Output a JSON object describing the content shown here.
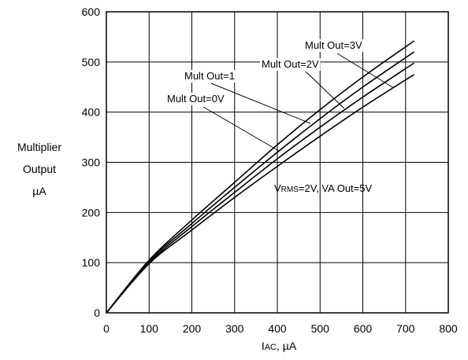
{
  "chart_data": {
    "type": "line",
    "xlabel_main": "I",
    "xlabel_sub": "AC",
    "xlabel_unit": ", µA",
    "ylabel_lines": [
      "Multiplier",
      "Output",
      "µA"
    ],
    "xlim": [
      0,
      800
    ],
    "ylim": [
      0,
      600
    ],
    "x_ticks": [
      "0",
      "100",
      "200",
      "300",
      "400",
      "500",
      "600",
      "700",
      "800"
    ],
    "y_ticks": [
      "0",
      "100",
      "200",
      "300",
      "400",
      "500",
      "600"
    ],
    "grid": true,
    "series": [
      {
        "name": "Mult Out=0V",
        "x": [
          0,
          100,
          200,
          300,
          400,
          500,
          600,
          720
        ],
        "y": [
          0,
          105,
          185,
          260,
          335,
          405,
          470,
          542
        ]
      },
      {
        "name": "Mult Out=1",
        "x": [
          0,
          100,
          200,
          300,
          400,
          500,
          600,
          720
        ],
        "y": [
          0,
          103,
          178,
          250,
          320,
          387,
          450,
          520
        ]
      },
      {
        "name": "Mult Out=2V",
        "x": [
          0,
          100,
          200,
          300,
          400,
          500,
          600,
          720
        ],
        "y": [
          0,
          100,
          172,
          240,
          307,
          370,
          430,
          498
        ]
      },
      {
        "name": "Mult Out=3V",
        "x": [
          0,
          100,
          200,
          300,
          400,
          500,
          600,
          720
        ],
        "y": [
          0,
          98,
          165,
          230,
          292,
          352,
          410,
          475
        ]
      }
    ],
    "annotations": [
      {
        "text": "Mult Out=3V"
      },
      {
        "text": "Mult Out=2V"
      },
      {
        "text": "Mult Out=1"
      },
      {
        "text": "Mult Out=0V"
      }
    ],
    "condition_label": {
      "v_main": "V",
      "v_sub": "RMS",
      "rest": "=2V, VA Out=5V"
    }
  }
}
